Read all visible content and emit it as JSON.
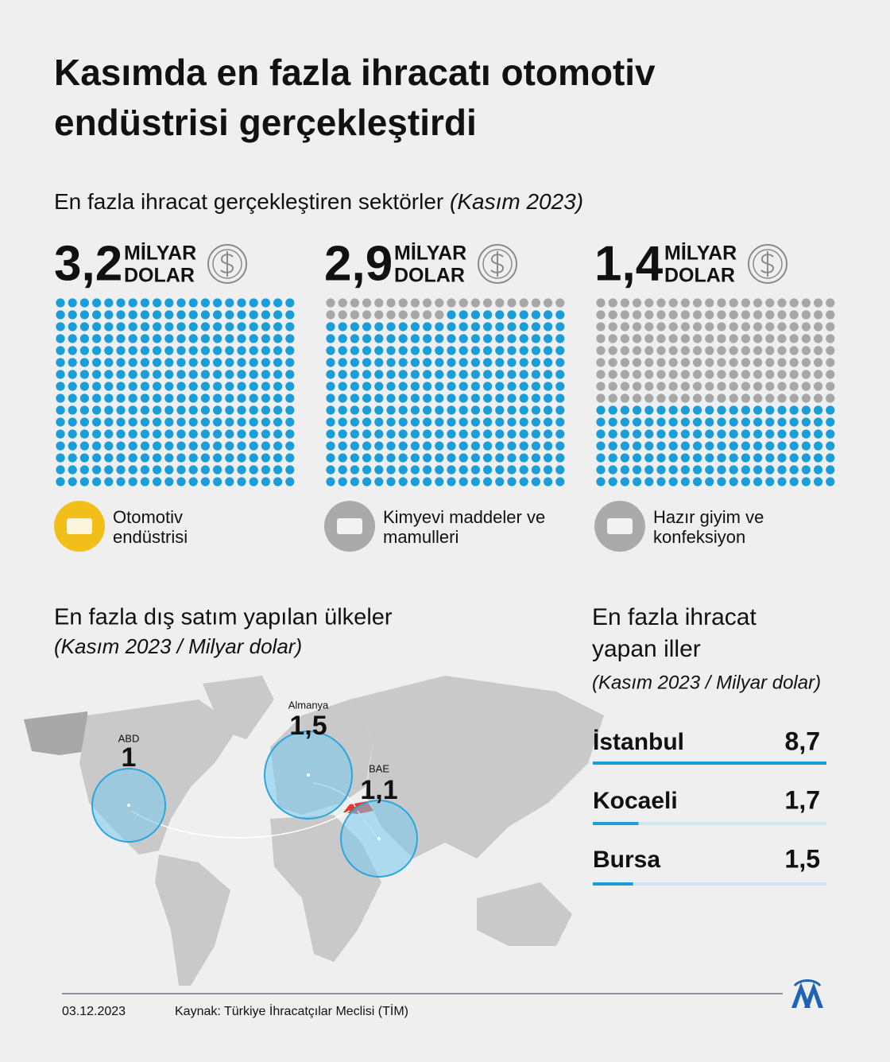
{
  "header": {
    "title_lines": [
      "Kasımda en fazla ihracatı otomotiv",
      "endüstrisi gerçekleştirdi"
    ]
  },
  "sectors": {
    "title": "En fazla ihracat gerçekleştiren sektörler",
    "period": "(Kasım 2023)",
    "unit_lines": [
      "MİLYAR",
      "DOLAR"
    ],
    "items": [
      {
        "value": 3.2,
        "value_label": "3,2",
        "label_lines": [
          "Otomotiv",
          "endüstrisi"
        ]
      },
      {
        "value": 2.9,
        "value_label": "2,9",
        "label_lines": [
          "Kimyevi maddeler ve",
          "mamulleri"
        ]
      },
      {
        "value": 1.4,
        "value_label": "1,4",
        "label_lines": [
          "Hazır giyim ve",
          "konfeksiyon"
        ]
      }
    ]
  },
  "countries": {
    "title": "En fazla dış satım yapılan ülkeler",
    "subtitle": "(Kasım 2023 / Milyar dolar)",
    "items": [
      {
        "name": "ABD",
        "value": 1
      },
      {
        "name": "Almanya",
        "value": 1.5,
        "value_label": "1,5"
      },
      {
        "name": "BAE",
        "value": 1.1,
        "value_label": "1,1"
      }
    ]
  },
  "provinces": {
    "title_lines": [
      "En fazla ihracat",
      "yapan iller"
    ],
    "subtitle": "(Kasım 2023 / Milyar dolar)",
    "items": [
      {
        "name": "İstanbul",
        "value": 8.7,
        "value_label": "8,7"
      },
      {
        "name": "Kocaeli",
        "value": 1.7,
        "value_label": "1,7"
      },
      {
        "name": "Bursa",
        "value": 1.5,
        "value_label": "1,5"
      }
    ]
  },
  "footer": {
    "date": "03.12.2023",
    "source": "Kaynak: Türkiye İhracatçılar Meclisi (TİM)"
  }
}
